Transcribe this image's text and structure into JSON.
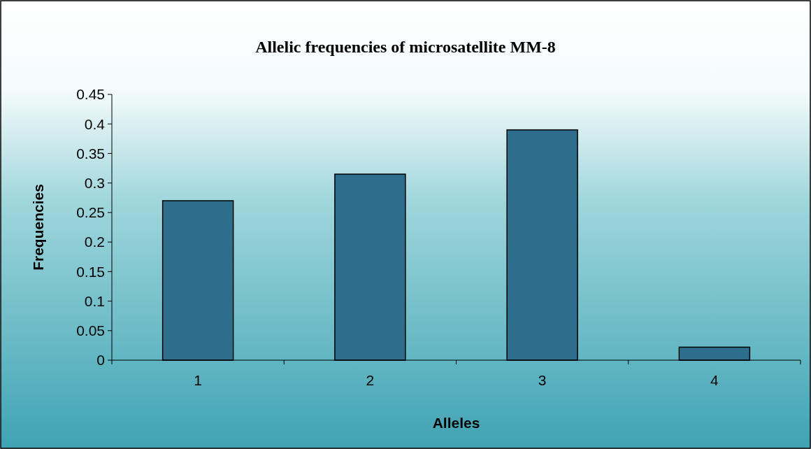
{
  "chart_data": {
    "type": "bar",
    "title": "Allelic frequencies of microsatellite MM-8",
    "xlabel": "Alleles",
    "ylabel": "Frequencies",
    "categories": [
      "1",
      "2",
      "3",
      "4"
    ],
    "values": [
      0.27,
      0.315,
      0.39,
      0.022
    ],
    "color": "#2e6e8c",
    "ylim": [
      0,
      0.45
    ],
    "yticks": [
      0,
      0.05,
      0.1,
      0.15,
      0.2,
      0.25,
      0.3,
      0.35,
      0.4,
      0.45
    ]
  }
}
